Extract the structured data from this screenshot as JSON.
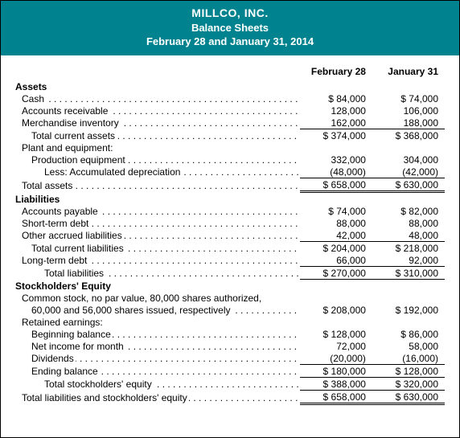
{
  "header": {
    "company": "MILLCO, INC.",
    "title": "Balance Sheets",
    "dates": "February 28 and January 31, 2014"
  },
  "colhead": {
    "c1": "February 28",
    "c2": "January 31"
  },
  "secAssets": "Assets",
  "cash": {
    "l": "Cash",
    "a": "$  84,000",
    "b": "$  74,000"
  },
  "ar": {
    "l": "Accounts receivable",
    "a": "128,000",
    "b": "106,000"
  },
  "inv": {
    "l": "Merchandise inventory",
    "a": "162,000",
    "b": "188,000"
  },
  "tca": {
    "l": "Total current assets",
    "a": "$ 374,000",
    "b": "$ 368,000"
  },
  "pe": {
    "l": "Plant and equipment:"
  },
  "prod": {
    "l": "Production equipment",
    "a": "332,000",
    "b": "304,000"
  },
  "acc": {
    "l": "Less: Accumulated depreciation",
    "a": "(48,000)",
    "b": "(42,000)"
  },
  "ta": {
    "l": "Total assets",
    "a": "$ 658,000",
    "b": "$ 630,000"
  },
  "secLiab": "Liabilities",
  "ap": {
    "l": "Accounts payable",
    "a": "$  74,000",
    "b": "$  82,000"
  },
  "std": {
    "l": "Short-term debt",
    "a": "88,000",
    "b": "88,000"
  },
  "oal": {
    "l": "Other accrued liabilities",
    "a": "42,000",
    "b": "48,000"
  },
  "tcl": {
    "l": "Total current liabilities",
    "a": "$ 204,000",
    "b": "$ 218,000"
  },
  "ltd": {
    "l": "Long-term debt",
    "a": "66,000",
    "b": "92,000"
  },
  "tl": {
    "l": "Total liabilities",
    "a": "$ 270,000",
    "b": "$ 310,000"
  },
  "secSE": "Stockholders' Equity",
  "cs1": {
    "l": "Common stock, no par value, 80,000 shares authorized,"
  },
  "cs2": {
    "l": "60,000 and 56,000 shares issued, respectively",
    "a": "$ 208,000",
    "b": "$ 192,000"
  },
  "reHead": {
    "l": "Retained earnings:"
  },
  "bb": {
    "l": "Beginning balance",
    "a": "$ 128,000",
    "b": "$  86,000"
  },
  "ni": {
    "l": "Net income for month",
    "a": "72,000",
    "b": "58,000"
  },
  "div": {
    "l": "Dividends",
    "a": "(20,000)",
    "b": "(16,000)"
  },
  "eb": {
    "l": "Ending balance",
    "a": "$ 180,000",
    "b": "$ 128,000"
  },
  "tse": {
    "l": "Total stockholders' equity",
    "a": "$ 388,000",
    "b": "$ 320,000"
  },
  "tlse": {
    "l": "Total liabilities and stockholders' equity",
    "a": "$ 658,000",
    "b": "$ 630,000"
  }
}
